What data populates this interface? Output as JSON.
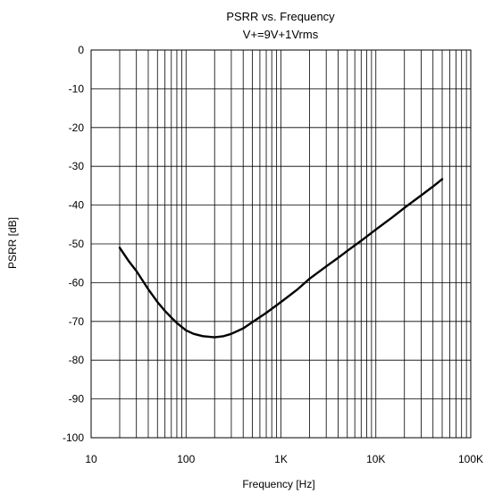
{
  "chart_data": {
    "type": "line",
    "title": "PSRR vs. Frequency",
    "subtitle": "V+=9V+1Vrms",
    "xlabel": "Frequency [Hz]",
    "ylabel": "PSRR [dB]",
    "x_scale": "log",
    "xlim": [
      10,
      100000
    ],
    "ylim": [
      -100,
      0
    ],
    "grid": true,
    "x_ticks": [
      {
        "value": 10,
        "label": "10"
      },
      {
        "value": 100,
        "label": "100"
      },
      {
        "value": 1000,
        "label": "1K"
      },
      {
        "value": 10000,
        "label": "10K"
      },
      {
        "value": 100000,
        "label": "100K"
      }
    ],
    "y_ticks": [
      {
        "value": 0,
        "label": "0"
      },
      {
        "value": -10,
        "label": "-10"
      },
      {
        "value": -20,
        "label": "-20"
      },
      {
        "value": -30,
        "label": "-30"
      },
      {
        "value": -40,
        "label": "-40"
      },
      {
        "value": -50,
        "label": "-50"
      },
      {
        "value": -60,
        "label": "-60"
      },
      {
        "value": -70,
        "label": "-70"
      },
      {
        "value": -80,
        "label": "-80"
      },
      {
        "value": -90,
        "label": "-90"
      },
      {
        "value": -100,
        "label": "-100"
      }
    ],
    "series": [
      {
        "color": "#000000",
        "x": [
          20,
          25,
          30,
          40,
          50,
          60,
          70,
          80,
          100,
          120,
          150,
          200,
          250,
          300,
          400,
          500,
          700,
          1000,
          1500,
          2000,
          3000,
          4000,
          5000,
          7000,
          10000,
          15000,
          20000,
          30000,
          40000,
          50000
        ],
        "y": [
          -51,
          -54.5,
          -57,
          -61.7,
          -65,
          -67.3,
          -69,
          -70.4,
          -72.3,
          -73.2,
          -73.8,
          -74.1,
          -73.8,
          -73.2,
          -71.8,
          -70.2,
          -67.8,
          -65,
          -61.7,
          -59,
          -55.8,
          -53.6,
          -51.8,
          -49.2,
          -46.3,
          -43.1,
          -40.7,
          -37.5,
          -35.2,
          -33.3
        ]
      }
    ]
  }
}
